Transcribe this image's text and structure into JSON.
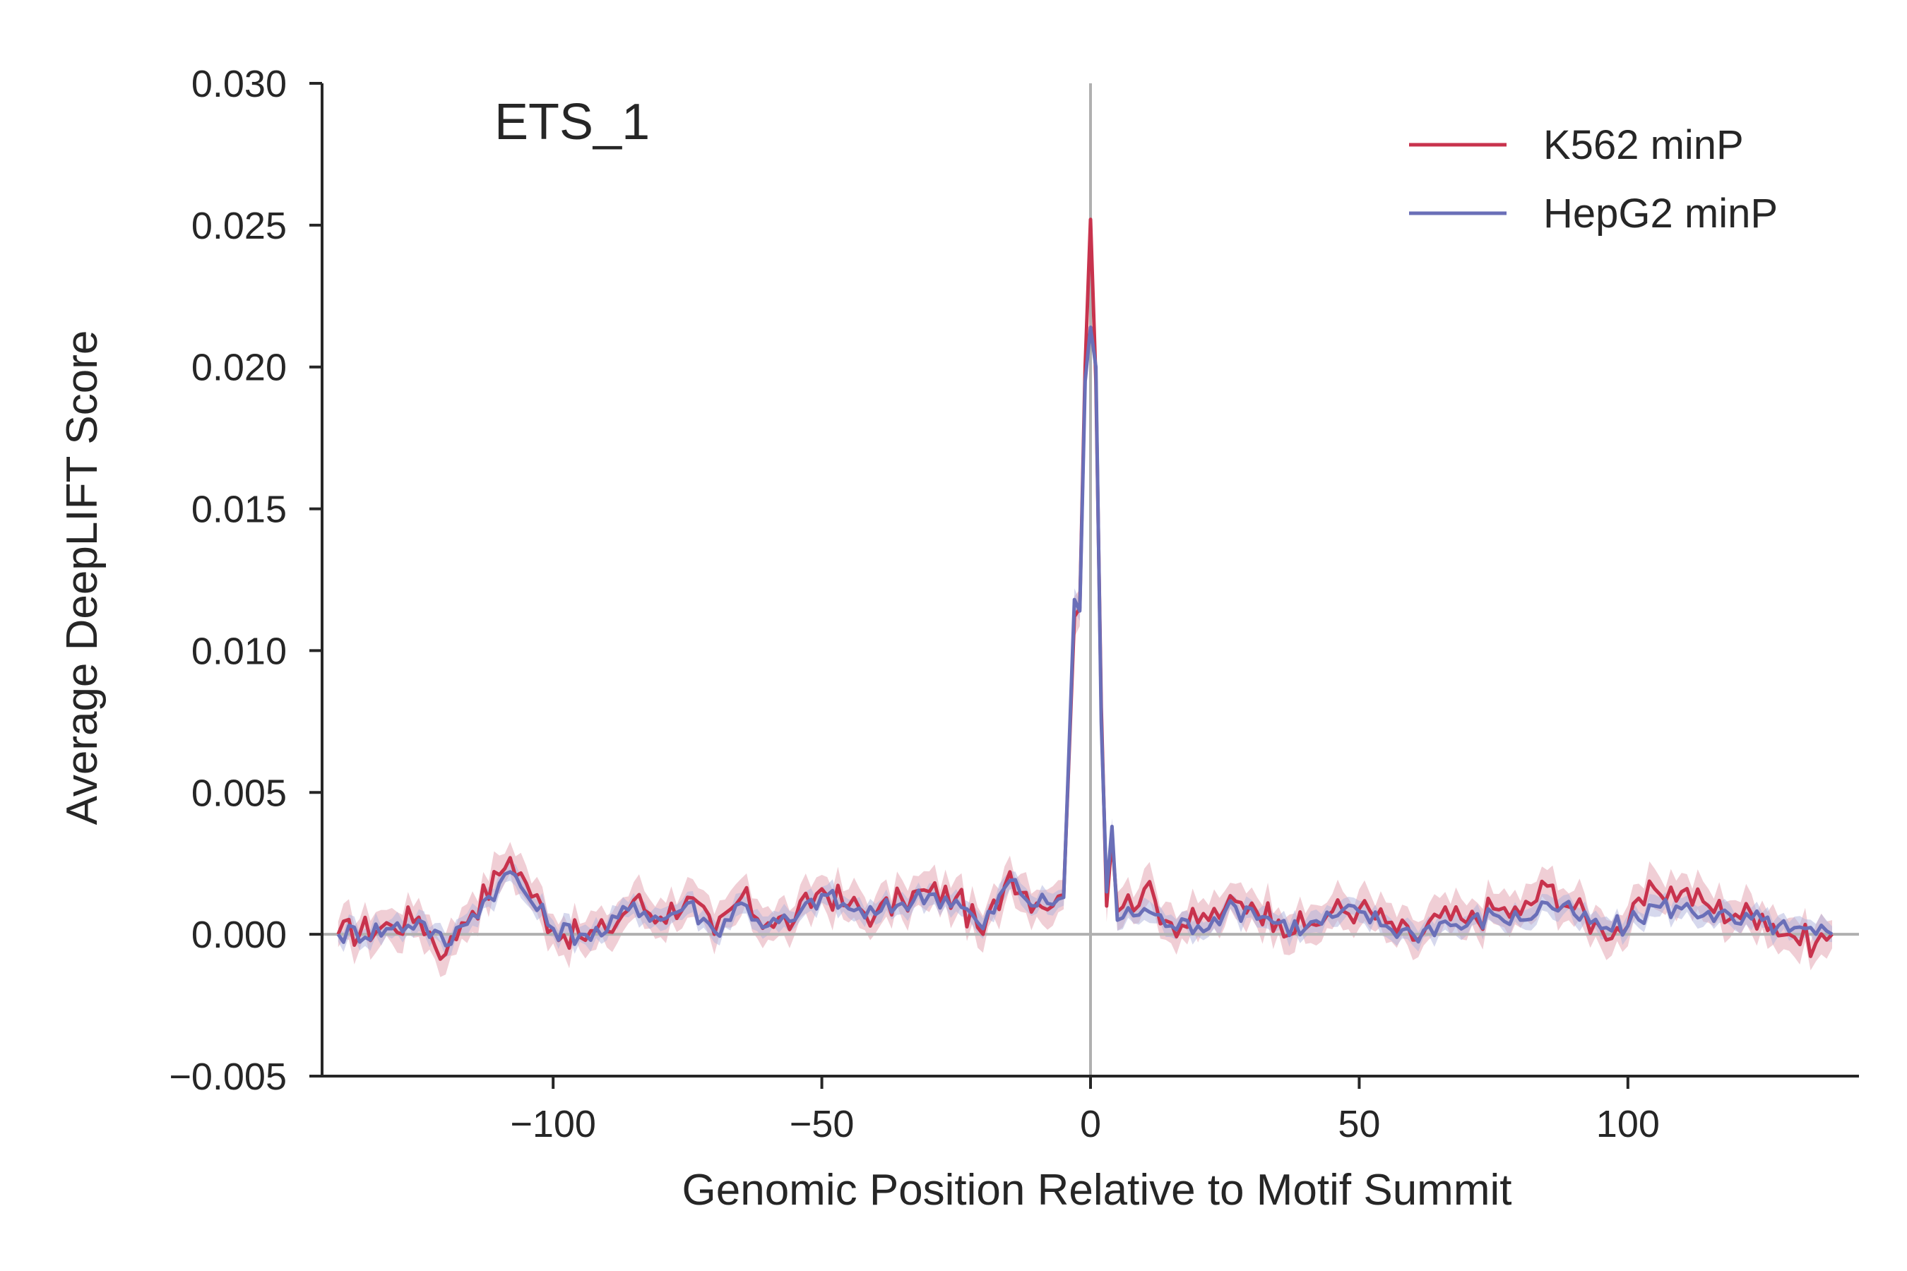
{
  "chart_data": {
    "type": "line",
    "title": "ETS_1",
    "xlabel": "Genomic Position Relative to Motif Summit",
    "ylabel": "Average DeepLIFT Score",
    "xlim": [
      -143,
      143
    ],
    "ylim": [
      -0.005,
      0.03
    ],
    "xticks": [
      -100,
      -50,
      0,
      50,
      100
    ],
    "xtick_labels": [
      "−100",
      "−50",
      "0",
      "50",
      "100"
    ],
    "yticks": [
      -0.005,
      0,
      0.005,
      0.01,
      0.015,
      0.02,
      0.025,
      0.03
    ],
    "ytick_labels": [
      "−0.005",
      "0.000",
      "0.005",
      "0.010",
      "0.015",
      "0.020",
      "0.025",
      "0.030"
    ],
    "grid": false,
    "legend_position": "top-right",
    "reference_lines": {
      "x": 0,
      "y": 0
    },
    "colors": {
      "k562": "#c8334d",
      "k562_band": "#e4a6b2",
      "hepg2": "#6a6fb8",
      "hepg2_band": "#aeb2dc",
      "reference": "#b0b0b0",
      "axis": "#262626"
    },
    "series": [
      {
        "name": "K562 minP",
        "key": "k562",
        "x": [
          -140,
          -130,
          -125,
          -120,
          -117,
          -115,
          -110,
          -108,
          -105,
          -100,
          -95,
          -90,
          -85,
          -80,
          -75,
          -70,
          -65,
          -60,
          -55,
          -50,
          -45,
          -40,
          -35,
          -30,
          -25,
          -20,
          -15,
          -10,
          -5,
          -3,
          -2,
          -1,
          0,
          1,
          2,
          3,
          4,
          5,
          10,
          15,
          20,
          25,
          30,
          35,
          40,
          45,
          50,
          55,
          60,
          65,
          70,
          75,
          80,
          85,
          90,
          95,
          100,
          105,
          110,
          115,
          120,
          125,
          130,
          135,
          138
        ],
        "y": [
          0.0,
          0.0003,
          0.0006,
          -0.0007,
          0.0004,
          0.0008,
          0.0021,
          0.0027,
          0.0018,
          0.0002,
          -0.0001,
          0.0001,
          0.0012,
          0.0006,
          0.0013,
          0.0,
          0.0013,
          0.0004,
          0.0005,
          0.0016,
          0.001,
          0.0007,
          0.0012,
          0.0015,
          0.0013,
          0.0,
          0.0022,
          0.0011,
          0.0014,
          0.0112,
          0.0115,
          0.02,
          0.0252,
          0.0195,
          0.008,
          0.001,
          0.0034,
          0.0008,
          0.0016,
          0.0004,
          0.0004,
          0.0009,
          0.0011,
          0.0005,
          0.0002,
          0.0008,
          0.0009,
          0.0004,
          -0.0002,
          0.0006,
          0.0004,
          0.0009,
          0.0007,
          0.0017,
          0.0009,
          0.0002,
          0.0003,
          0.0016,
          0.0015,
          0.001,
          0.0007,
          0.0007,
          0.0,
          -0.0003,
          0.0
        ]
      },
      {
        "name": "HepG2 minP",
        "key": "hepg2",
        "x": [
          -140,
          -130,
          -125,
          -120,
          -117,
          -115,
          -110,
          -108,
          -105,
          -100,
          -95,
          -90,
          -85,
          -80,
          -75,
          -70,
          -65,
          -60,
          -55,
          -50,
          -45,
          -40,
          -35,
          -30,
          -25,
          -20,
          -15,
          -10,
          -5,
          -3,
          -2,
          -1,
          0,
          1,
          2,
          3,
          4,
          5,
          10,
          15,
          20,
          25,
          30,
          35,
          40,
          45,
          50,
          55,
          60,
          65,
          70,
          75,
          80,
          85,
          90,
          95,
          100,
          105,
          110,
          115,
          120,
          125,
          130,
          135,
          138
        ],
        "y": [
          0.0,
          0.0002,
          0.0005,
          -0.0004,
          0.0003,
          0.0007,
          0.0018,
          0.0022,
          0.0014,
          0.0002,
          0.0,
          0.0001,
          0.0011,
          0.0005,
          0.0011,
          0.0001,
          0.0011,
          0.0003,
          0.0005,
          0.0014,
          0.0009,
          0.0007,
          0.0011,
          0.0014,
          0.0012,
          0.0002,
          0.0019,
          0.001,
          0.0013,
          0.0118,
          0.0114,
          0.0195,
          0.0214,
          0.02,
          0.0075,
          0.0015,
          0.0038,
          0.0005,
          0.0009,
          0.0003,
          0.0003,
          0.0008,
          0.0009,
          0.0004,
          0.0002,
          0.0006,
          0.0008,
          0.0003,
          0.0,
          0.0004,
          0.0003,
          0.0007,
          0.0005,
          0.0011,
          0.0007,
          0.0002,
          0.0003,
          0.001,
          0.0009,
          0.0008,
          0.0004,
          0.0005,
          0.0001,
          0.0,
          0.0
        ]
      }
    ]
  }
}
